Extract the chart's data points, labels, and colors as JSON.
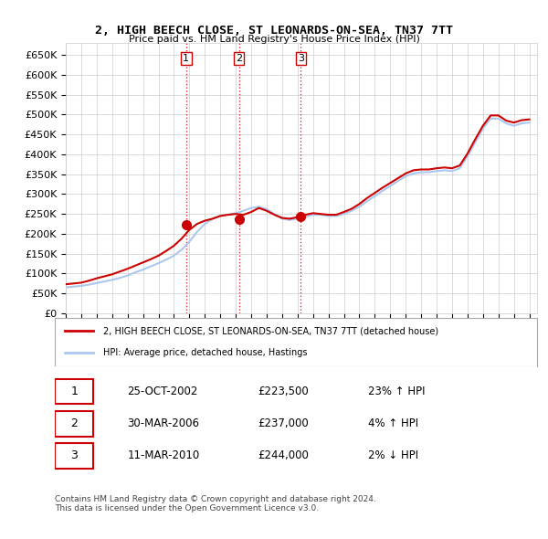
{
  "title": "2, HIGH BEECH CLOSE, ST LEONARDS-ON-SEA, TN37 7TT",
  "subtitle": "Price paid vs. HM Land Registry's House Price Index (HPI)",
  "ylim": [
    0,
    680000
  ],
  "yticks": [
    0,
    50000,
    100000,
    150000,
    200000,
    250000,
    300000,
    350000,
    400000,
    450000,
    500000,
    550000,
    600000,
    650000
  ],
  "ytick_labels": [
    "£0",
    "£50K",
    "£100K",
    "£150K",
    "£200K",
    "£250K",
    "£300K",
    "£350K",
    "£400K",
    "£450K",
    "£500K",
    "£550K",
    "£600K",
    "£650K"
  ],
  "sale_dates": [
    "2002-10-25",
    "2006-03-30",
    "2010-03-11"
  ],
  "sale_prices": [
    223500,
    237000,
    244000
  ],
  "sale_labels": [
    "1",
    "2",
    "3"
  ],
  "vline_color": "#cc0000",
  "vline_style": ":",
  "sale_marker_color": "#cc0000",
  "hpi_line_color": "#aac8f0",
  "price_line_color": "#cc0000",
  "background_color": "#ffffff",
  "grid_color": "#cccccc",
  "legend_entries": [
    "2, HIGH BEECH CLOSE, ST LEONARDS-ON-SEA, TN37 7TT (detached house)",
    "HPI: Average price, detached house, Hastings"
  ],
  "table_data": [
    [
      "1",
      "25-OCT-2002",
      "£223,500",
      "23% ↑ HPI"
    ],
    [
      "2",
      "30-MAR-2006",
      "£237,000",
      "4% ↑ HPI"
    ],
    [
      "3",
      "11-MAR-2010",
      "£244,000",
      "2% ↓ HPI"
    ]
  ],
  "footer": "Contains HM Land Registry data © Crown copyright and database right 2024.\nThis data is licensed under the Open Government Licence v3.0.",
  "hpi_data_x": [
    1995.0,
    1995.5,
    1996.0,
    1996.5,
    1997.0,
    1997.5,
    1998.0,
    1998.5,
    1999.0,
    1999.5,
    2000.0,
    2000.5,
    2001.0,
    2001.5,
    2002.0,
    2002.5,
    2003.0,
    2003.5,
    2004.0,
    2004.5,
    2005.0,
    2005.5,
    2006.0,
    2006.5,
    2007.0,
    2007.5,
    2008.0,
    2008.5,
    2009.0,
    2009.5,
    2010.0,
    2010.5,
    2011.0,
    2011.5,
    2012.0,
    2012.5,
    2013.0,
    2013.5,
    2014.0,
    2014.5,
    2015.0,
    2015.5,
    2016.0,
    2016.5,
    2017.0,
    2017.5,
    2018.0,
    2018.5,
    2019.0,
    2019.5,
    2020.0,
    2020.5,
    2021.0,
    2021.5,
    2022.0,
    2022.5,
    2023.0,
    2023.5,
    2024.0,
    2024.5,
    2025.0
  ],
  "hpi_data_y": [
    65000,
    67000,
    69000,
    72000,
    76000,
    80000,
    84000,
    89000,
    95000,
    103000,
    110000,
    118000,
    126000,
    135000,
    145000,
    160000,
    180000,
    205000,
    225000,
    238000,
    245000,
    248000,
    252000,
    258000,
    265000,
    268000,
    262000,
    250000,
    238000,
    235000,
    238000,
    243000,
    248000,
    248000,
    245000,
    245000,
    250000,
    258000,
    268000,
    282000,
    295000,
    308000,
    320000,
    333000,
    345000,
    352000,
    355000,
    355000,
    358000,
    360000,
    358000,
    365000,
    395000,
    430000,
    465000,
    490000,
    490000,
    478000,
    472000,
    478000,
    480000
  ],
  "price_data_x": [
    1995.0,
    1995.5,
    1996.0,
    1996.5,
    1997.0,
    1997.5,
    1998.0,
    1998.5,
    1999.0,
    1999.5,
    2000.0,
    2000.5,
    2001.0,
    2001.5,
    2002.0,
    2002.5,
    2003.0,
    2003.5,
    2004.0,
    2004.5,
    2005.0,
    2005.5,
    2006.0,
    2006.5,
    2007.0,
    2007.5,
    2008.0,
    2008.5,
    2009.0,
    2009.5,
    2010.0,
    2010.5,
    2011.0,
    2011.5,
    2012.0,
    2012.5,
    2013.0,
    2013.5,
    2014.0,
    2014.5,
    2015.0,
    2015.5,
    2016.0,
    2016.5,
    2017.0,
    2017.5,
    2018.0,
    2018.5,
    2019.0,
    2019.5,
    2020.0,
    2020.5,
    2021.0,
    2021.5,
    2022.0,
    2022.5,
    2023.0,
    2023.5,
    2024.0,
    2024.5,
    2025.0
  ],
  "price_data_y": [
    73000,
    75000,
    77000,
    82000,
    88000,
    93000,
    98000,
    105000,
    112000,
    120000,
    128000,
    136000,
    145000,
    157000,
    170000,
    188000,
    210000,
    225000,
    233000,
    238000,
    245000,
    248000,
    250000,
    248000,
    255000,
    265000,
    258000,
    248000,
    240000,
    238000,
    242000,
    248000,
    252000,
    250000,
    248000,
    248000,
    255000,
    263000,
    275000,
    290000,
    303000,
    316000,
    328000,
    340000,
    352000,
    360000,
    362000,
    362000,
    365000,
    367000,
    365000,
    372000,
    402000,
    438000,
    472000,
    498000,
    498000,
    485000,
    480000,
    486000,
    488000
  ]
}
